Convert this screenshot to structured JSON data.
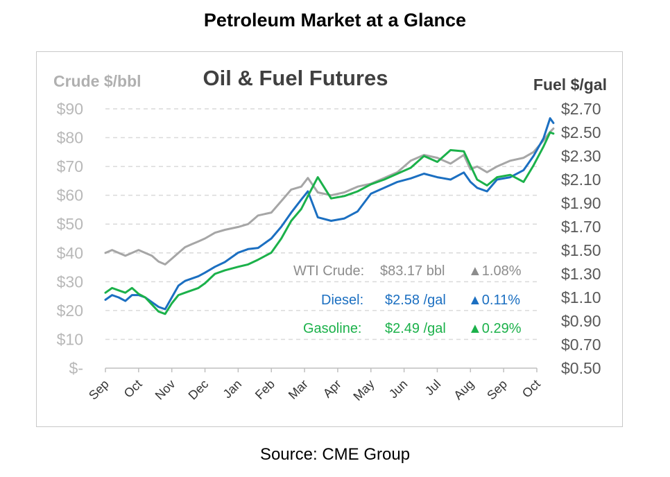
{
  "page_title": "Petroleum Market at a Glance",
  "source": "Source: CME Group",
  "chart_data": {
    "type": "line",
    "title": "Oil & Fuel Futures",
    "left_axis_label": "Crude $/bbl",
    "right_axis_label": "Fuel $/gal",
    "left_ticks": [
      "$-",
      "$10",
      "$20",
      "$30",
      "$40",
      "$50",
      "$60",
      "$70",
      "$80",
      "$90"
    ],
    "right_ticks": [
      "$0.50",
      "$0.70",
      "$0.90",
      "$1.10",
      "$1.30",
      "$1.50",
      "$1.70",
      "$1.90",
      "$2.10",
      "$2.30",
      "$2.50",
      "$2.70"
    ],
    "left_ylim": [
      0,
      90
    ],
    "right_ylim": [
      0.5,
      2.7
    ],
    "months": [
      "Sep",
      "Oct",
      "Nov",
      "Dec",
      "Jan",
      "Feb",
      "Mar",
      "Apr",
      "May",
      "Jun",
      "Jul",
      "Aug",
      "Sep",
      "Oct"
    ],
    "grid": true,
    "series": [
      {
        "name": "WTI Crude",
        "axis": "left",
        "color": "#a6a6a6",
        "x": [
          0,
          0.2,
          0.4,
          0.6,
          0.8,
          1.0,
          1.2,
          1.4,
          1.6,
          1.8,
          2.0,
          2.2,
          2.4,
          2.6,
          2.8,
          3.0,
          3.3,
          3.6,
          4.0,
          4.3,
          4.6,
          5.0,
          5.3,
          5.6,
          5.9,
          6.1,
          6.4,
          6.8,
          7.2,
          7.6,
          8.0,
          8.4,
          8.8,
          9.2,
          9.6,
          10.0,
          10.4,
          10.8,
          11.0,
          11.2,
          11.5,
          11.8,
          12.2,
          12.6,
          12.9,
          13.2,
          13.4,
          13.5
        ],
        "values": [
          40,
          41,
          40,
          39,
          40,
          41,
          40,
          39,
          37,
          36,
          38,
          40,
          42,
          43,
          44,
          45,
          47,
          48,
          49,
          50,
          53,
          54,
          58,
          62,
          63,
          66,
          61,
          60,
          61,
          63,
          64,
          66,
          68,
          72,
          74,
          73,
          71,
          74,
          69,
          70,
          68,
          70,
          72,
          73,
          75,
          79,
          82,
          83.17
        ]
      },
      {
        "name": "Diesel",
        "axis": "right",
        "color": "#1b6fc1",
        "x": [
          0,
          0.2,
          0.4,
          0.6,
          0.8,
          1.0,
          1.2,
          1.4,
          1.6,
          1.8,
          2.0,
          2.2,
          2.4,
          2.6,
          2.8,
          3.0,
          3.3,
          3.6,
          4.0,
          4.3,
          4.6,
          5.0,
          5.3,
          5.6,
          5.9,
          6.1,
          6.4,
          6.8,
          7.2,
          7.6,
          8.0,
          8.4,
          8.8,
          9.2,
          9.6,
          10.0,
          10.4,
          10.8,
          11.0,
          11.2,
          11.5,
          11.8,
          12.2,
          12.6,
          12.9,
          13.2,
          13.4,
          13.5
        ],
        "values": [
          1.08,
          1.12,
          1.1,
          1.07,
          1.12,
          1.12,
          1.1,
          1.06,
          1.02,
          1.0,
          1.1,
          1.2,
          1.24,
          1.26,
          1.28,
          1.31,
          1.36,
          1.4,
          1.48,
          1.51,
          1.52,
          1.6,
          1.7,
          1.82,
          1.93,
          2.0,
          1.78,
          1.75,
          1.77,
          1.83,
          1.98,
          2.03,
          2.08,
          2.11,
          2.15,
          2.12,
          2.1,
          2.16,
          2.08,
          2.03,
          2.0,
          2.1,
          2.12,
          2.18,
          2.3,
          2.45,
          2.62,
          2.58
        ]
      },
      {
        "name": "Gasoline",
        "axis": "right",
        "color": "#1bb14a",
        "x": [
          0,
          0.2,
          0.4,
          0.6,
          0.8,
          1.0,
          1.2,
          1.4,
          1.6,
          1.8,
          2.0,
          2.2,
          2.4,
          2.6,
          2.8,
          3.0,
          3.3,
          3.6,
          4.0,
          4.3,
          4.6,
          5.0,
          5.3,
          5.6,
          5.9,
          6.1,
          6.4,
          6.8,
          7.2,
          7.6,
          8.0,
          8.4,
          8.8,
          9.2,
          9.6,
          10.0,
          10.4,
          10.8,
          11.0,
          11.2,
          11.5,
          11.8,
          12.2,
          12.6,
          12.9,
          13.2,
          13.4,
          13.5
        ],
        "values": [
          1.14,
          1.18,
          1.16,
          1.14,
          1.18,
          1.13,
          1.1,
          1.04,
          0.98,
          0.96,
          1.05,
          1.12,
          1.14,
          1.16,
          1.18,
          1.22,
          1.3,
          1.33,
          1.36,
          1.38,
          1.42,
          1.48,
          1.6,
          1.75,
          1.85,
          1.96,
          2.12,
          1.94,
          1.96,
          2.0,
          2.06,
          2.1,
          2.15,
          2.2,
          2.3,
          2.25,
          2.35,
          2.34,
          2.22,
          2.1,
          2.05,
          2.12,
          2.14,
          2.08,
          2.22,
          2.38,
          2.5,
          2.49
        ]
      }
    ],
    "annotations": [
      {
        "label": "WTI Crude:",
        "value": "$83.17 bbl",
        "change": "▲1.08%",
        "color": "#8c8c8c"
      },
      {
        "label": "Diesel:",
        "value": "$2.58 /gal",
        "change": "▲0.11%",
        "color": "#1b6fc1"
      },
      {
        "label": "Gasoline:",
        "value": "$2.49 /gal",
        "change": "▲0.29%",
        "color": "#1bb14a"
      }
    ]
  }
}
